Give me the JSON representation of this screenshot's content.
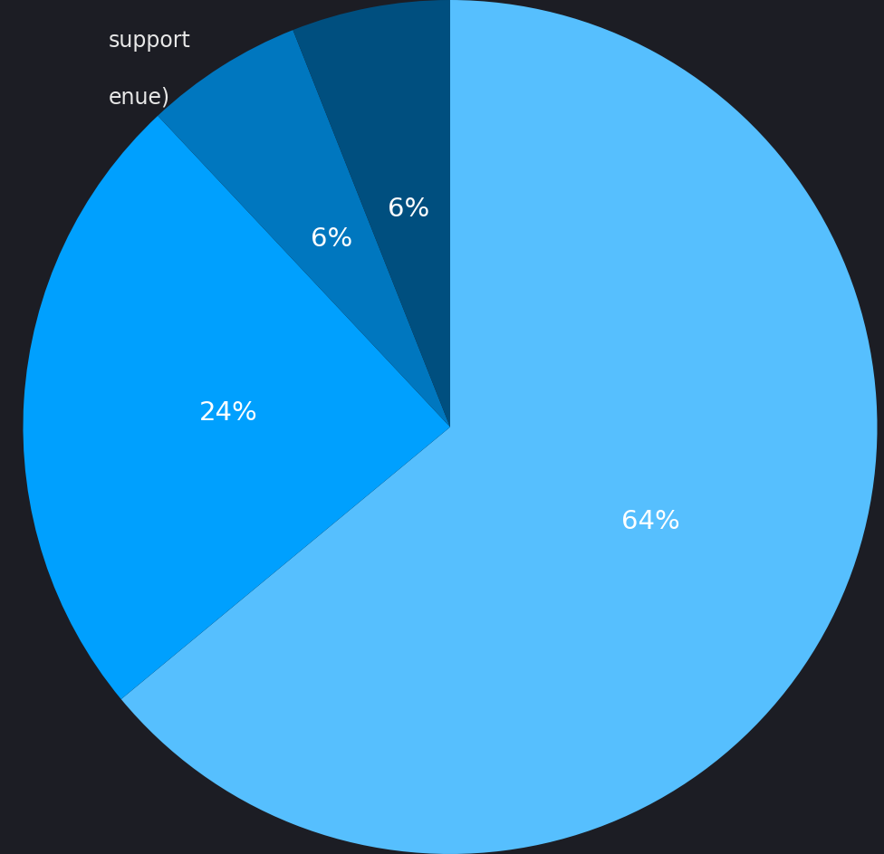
{
  "chart_data": {
    "type": "pie",
    "annotations": [
      "support",
      "enue)"
    ],
    "values": [
      64,
      24,
      6,
      6
    ],
    "value_labels": [
      "64%",
      "24%",
      "6%",
      "6%"
    ],
    "colors": [
      "#56bffe",
      "#00a0fe",
      "#0077bf",
      "#004f7f"
    ],
    "data_labels": true
  }
}
